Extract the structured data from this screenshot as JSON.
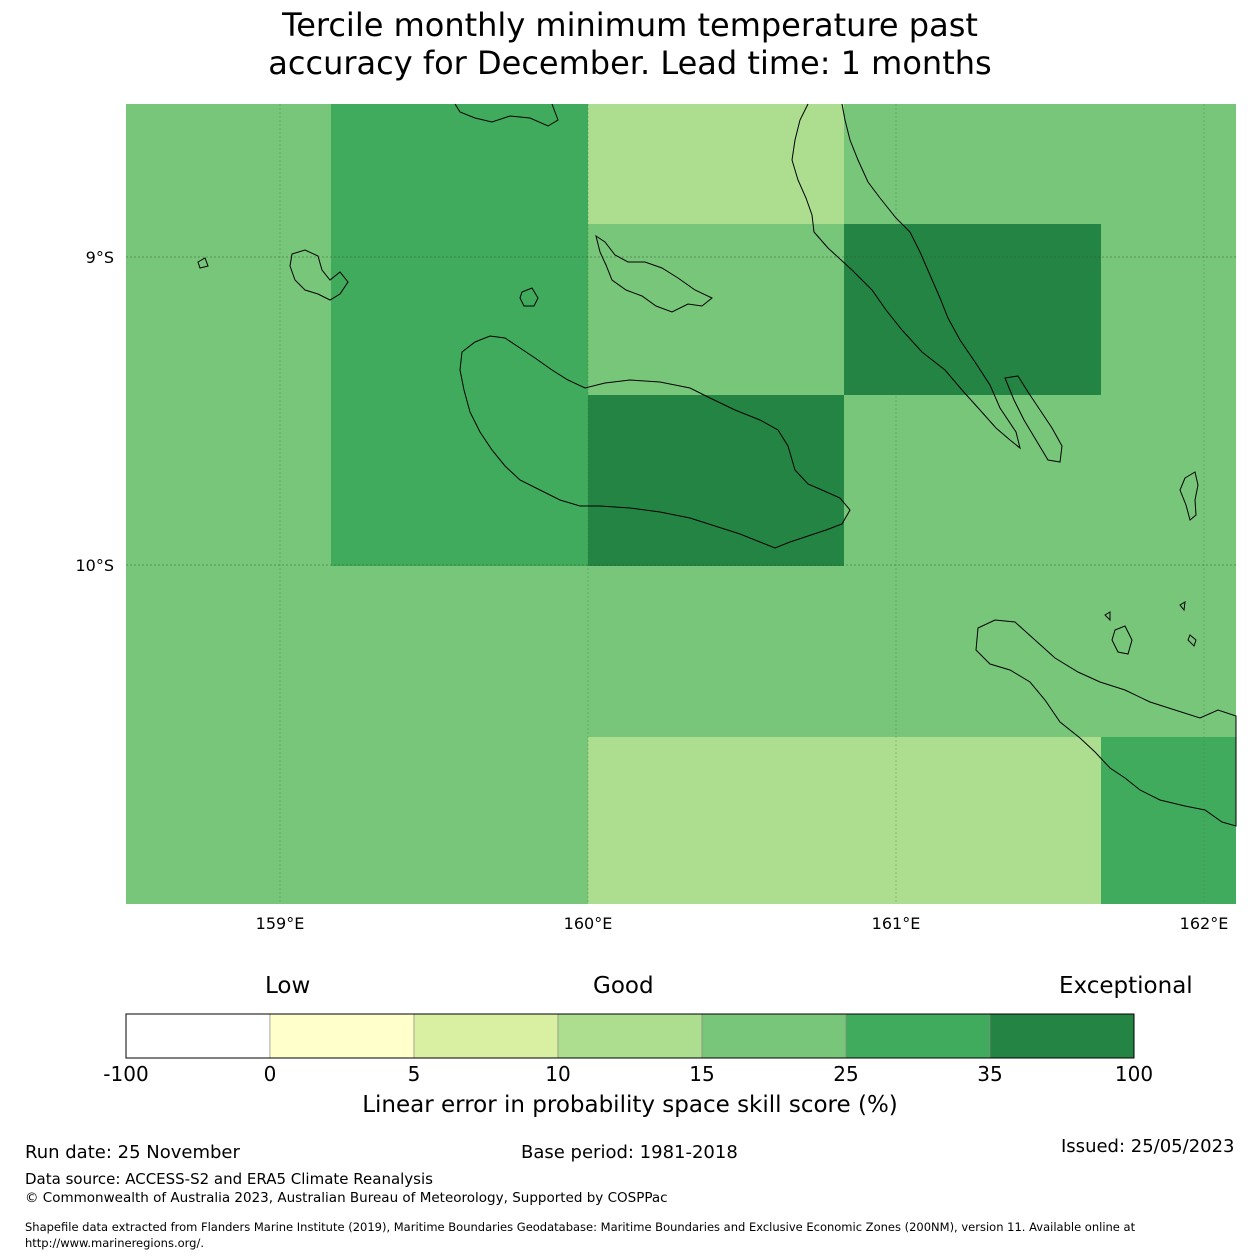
{
  "title": {
    "line1": "Tercile monthly minimum temperature past",
    "line2": "accuracy for December. Lead time: 1 months"
  },
  "map": {
    "lon_ticks": [
      "159°E",
      "160°E",
      "161°E",
      "162°E"
    ],
    "lat_ticks": [
      "9°S",
      "10°S"
    ],
    "grid": [
      [
        "#78c679",
        "#41ab5d",
        "#41ab5d",
        "#addd8e",
        "#78c679",
        "#78c679"
      ],
      [
        "#78c679",
        "#41ab5d",
        "#41ab5d",
        "#78c679",
        "#238443",
        "#78c679"
      ],
      [
        "#78c679",
        "#41ab5d",
        "#41ab5d",
        "#238443",
        "#78c679",
        "#78c679"
      ],
      [
        "#78c679",
        "#78c679",
        "#78c679",
        "#78c679",
        "#78c679",
        "#78c679"
      ],
      [
        "#78c679",
        "#78c679",
        "#78c679",
        "#addd8e",
        "#addd8e",
        "#41ab5d"
      ]
    ]
  },
  "legend": {
    "category_labels": [
      "Low",
      "Good",
      "Exceptional"
    ],
    "tick_labels": [
      "-100",
      "0",
      "5",
      "10",
      "15",
      "25",
      "35",
      "100"
    ],
    "colors": [
      "#ffffff",
      "#ffffcc",
      "#d9f0a3",
      "#addd8e",
      "#78c679",
      "#41ab5d",
      "#238443"
    ],
    "title": "Linear error in probability space skill score (%)"
  },
  "footer": {
    "run_date": "Run date: 25 November",
    "base_period": "Base period: 1981-2018",
    "issued": "Issued: 25/05/2023",
    "data_source": "Data source: ACCESS-S2 and ERA5 Climate Reanalysis",
    "copyright": "© Commonwealth of Australia 2023, Australian Bureau of Meteorology, Supported by COSPPac",
    "shapefile_line1": "Shapefile data extracted from Flanders Marine Institute (2019), Maritime Boundaries Geodatabase: Maritime Boundaries and Exclusive Economic Zones (200NM), version 11. Available online at",
    "shapefile_line2": "http://www.marineregions.org/."
  }
}
